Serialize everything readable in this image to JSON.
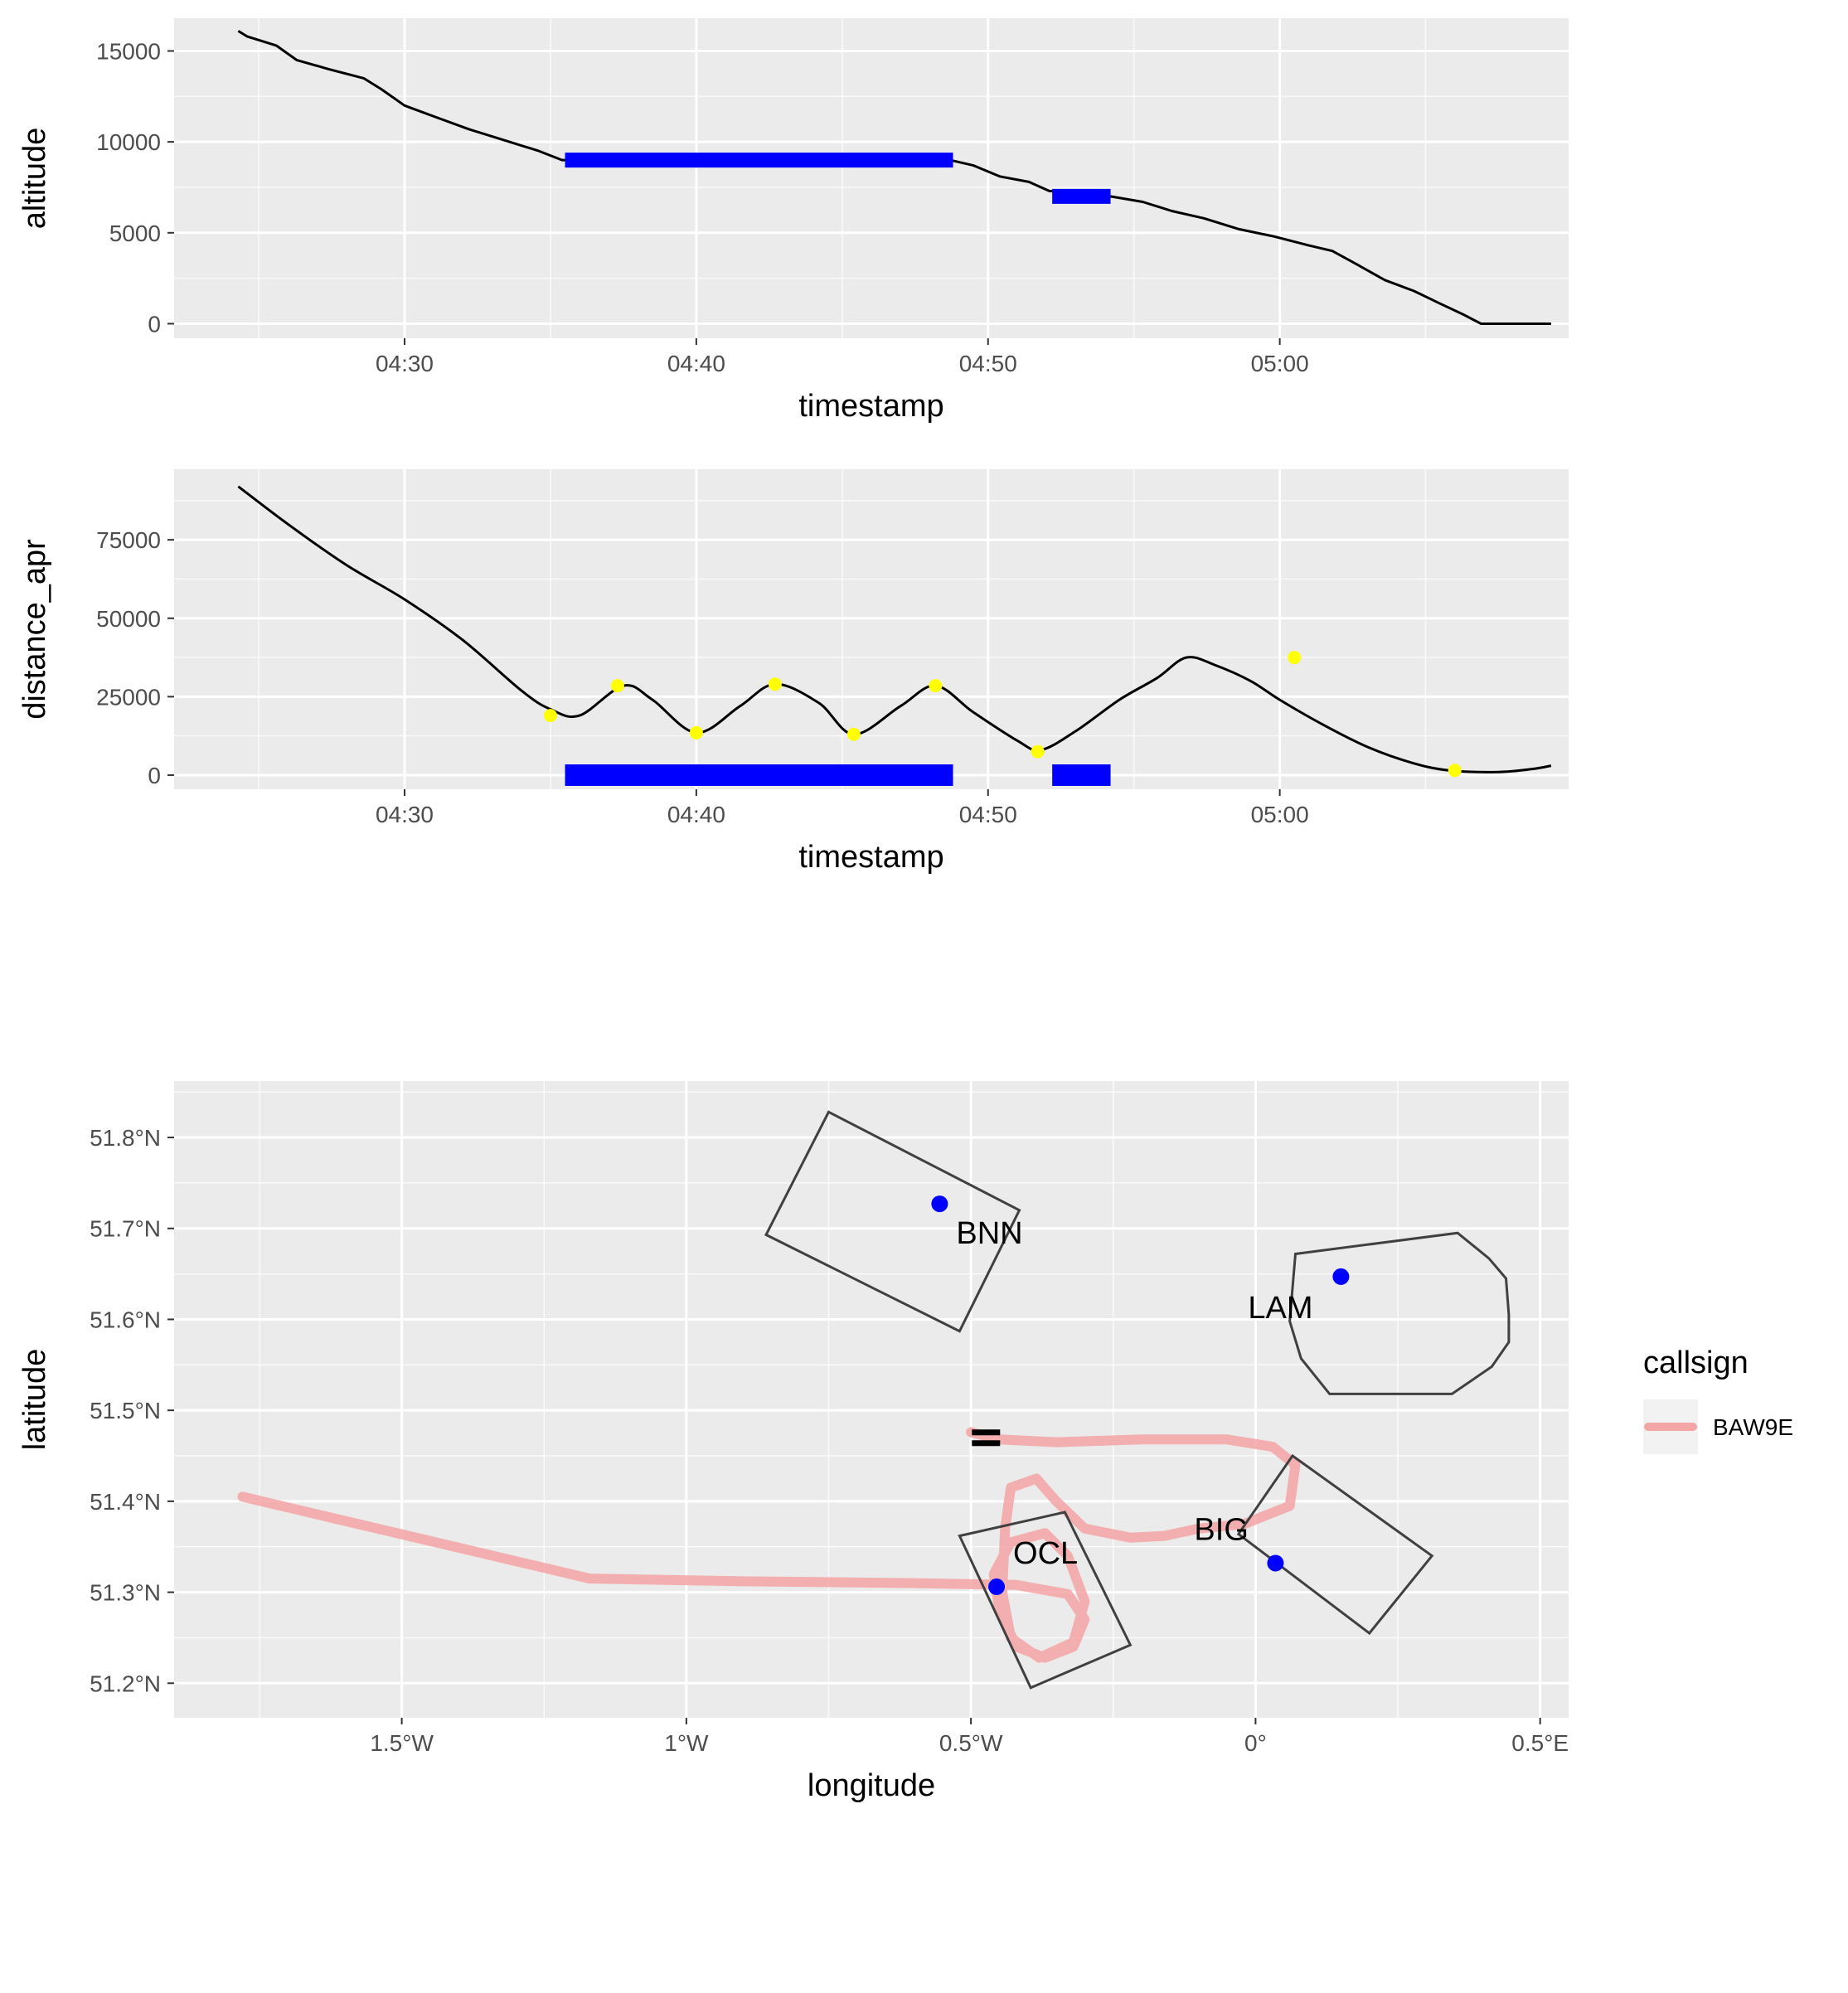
{
  "chart_data": [
    {
      "type": "line",
      "xlabel": "timestamp",
      "ylabel": "altitude",
      "x_ticks": [
        "04:30",
        "04:40",
        "04:50",
        "05:00"
      ],
      "x_tick_minutes": [
        30,
        40,
        50,
        60
      ],
      "y_ticks": [
        "0",
        "5000",
        "10000",
        "15000"
      ],
      "y_tick_values": [
        0,
        5000,
        10000,
        15000
      ],
      "xlim_minutes": [
        22.1,
        69.9
      ],
      "ylim": [
        -800,
        16800
      ],
      "series": [
        {
          "color": "#000000",
          "points": [
            [
              24.3,
              16100
            ],
            [
              24.6,
              15800
            ],
            [
              25.0,
              15600
            ],
            [
              25.6,
              15300
            ],
            [
              26.3,
              14500
            ],
            [
              27.4,
              14000
            ],
            [
              28.6,
              13500
            ],
            [
              29.2,
              12900
            ],
            [
              30.0,
              12000
            ],
            [
              31.0,
              11400
            ],
            [
              32.2,
              10700
            ],
            [
              33.4,
              10100
            ],
            [
              34.6,
              9500
            ],
            [
              35.4,
              9000
            ],
            [
              37.0,
              9000
            ],
            [
              40.0,
              9000
            ],
            [
              45.0,
              9000
            ],
            [
              48.7,
              9000
            ],
            [
              49.5,
              8700
            ],
            [
              50.4,
              8100
            ],
            [
              51.4,
              7800
            ],
            [
              52.1,
              7300
            ],
            [
              53.5,
              7200
            ],
            [
              54.2,
              7000
            ],
            [
              55.3,
              6700
            ],
            [
              56.3,
              6200
            ],
            [
              57.4,
              5800
            ],
            [
              58.6,
              5200
            ],
            [
              59.8,
              4800
            ],
            [
              61.0,
              4300
            ],
            [
              61.8,
              4000
            ],
            [
              62.6,
              3300
            ],
            [
              63.6,
              2400
            ],
            [
              64.6,
              1800
            ],
            [
              65.5,
              1100
            ],
            [
              66.3,
              500
            ],
            [
              66.9,
              0
            ],
            [
              67.5,
              0
            ],
            [
              68.7,
              0
            ],
            [
              69.3,
              0
            ]
          ]
        }
      ],
      "holds": [
        {
          "start_minutes": 35.5,
          "end_minutes": 48.8,
          "altitude": 9000
        },
        {
          "start_minutes": 52.2,
          "end_minutes": 54.2,
          "altitude": 7000
        }
      ]
    },
    {
      "type": "line",
      "xlabel": "timestamp",
      "ylabel": "distance_apr",
      "x_ticks": [
        "04:30",
        "04:40",
        "04:50",
        "05:00"
      ],
      "x_tick_minutes": [
        30,
        40,
        50,
        60
      ],
      "y_ticks": [
        "0",
        "25000",
        "50000",
        "75000"
      ],
      "y_tick_values": [
        0,
        25000,
        50000,
        75000
      ],
      "xlim_minutes": [
        22.1,
        69.9
      ],
      "ylim": [
        -4500,
        97500
      ],
      "series": [
        {
          "color": "#000000",
          "points": [
            [
              24.3,
              92000
            ],
            [
              26.0,
              80000
            ],
            [
              28.0,
              67000
            ],
            [
              30.0,
              56000
            ],
            [
              32.0,
              43000
            ],
            [
              34.0,
              27000
            ],
            [
              35.0,
              21000
            ],
            [
              36.0,
              19000
            ],
            [
              37.5,
              28500
            ],
            [
              38.5,
              24000
            ],
            [
              40.0,
              13500
            ],
            [
              41.5,
              22000
            ],
            [
              42.7,
              29000
            ],
            [
              44.2,
              23000
            ],
            [
              45.4,
              13000
            ],
            [
              47.0,
              22000
            ],
            [
              48.2,
              28500
            ],
            [
              49.5,
              20000
            ],
            [
              51.0,
              11000
            ],
            [
              51.8,
              8000
            ],
            [
              53.0,
              14000
            ],
            [
              54.5,
              24000
            ],
            [
              55.8,
              31000
            ],
            [
              56.8,
              37500
            ],
            [
              57.8,
              35000
            ],
            [
              59.0,
              30000
            ],
            [
              60.0,
              24000
            ],
            [
              61.5,
              16000
            ],
            [
              63.0,
              9000
            ],
            [
              64.5,
              4000
            ],
            [
              65.8,
              1500
            ],
            [
              67.5,
              1000
            ],
            [
              68.7,
              2000
            ],
            [
              69.3,
              3000
            ]
          ]
        }
      ],
      "yellow_points": [
        [
          35.0,
          19000
        ],
        [
          37.3,
          28500
        ],
        [
          40.0,
          13500
        ],
        [
          42.7,
          29000
        ],
        [
          45.4,
          13000
        ],
        [
          48.2,
          28500
        ],
        [
          51.7,
          7500
        ],
        [
          60.5,
          37500
        ],
        [
          66.0,
          1500
        ]
      ],
      "holds": [
        {
          "start_minutes": 35.5,
          "end_minutes": 48.8,
          "value": 0
        },
        {
          "start_minutes": 52.2,
          "end_minutes": 54.2,
          "value": 0
        }
      ]
    },
    {
      "type": "line",
      "xlabel": "longitude",
      "ylabel": "latitude",
      "x_ticks": [
        "1.5°W",
        "1°W",
        "0.5°W",
        "0°",
        "0.5°E"
      ],
      "x_tick_values": [
        -1.5,
        -1.0,
        -0.5,
        0.0,
        0.5
      ],
      "y_ticks": [
        "51.2°N",
        "51.3°N",
        "51.4°N",
        "51.5°N",
        "51.6°N",
        "51.7°N",
        "51.8°N"
      ],
      "y_tick_values": [
        51.2,
        51.3,
        51.4,
        51.5,
        51.6,
        51.7,
        51.8
      ],
      "xlim": [
        -1.9,
        0.55
      ],
      "ylim": [
        51.162,
        51.862
      ],
      "legend": {
        "title": "callsign",
        "entries": [
          "BAW9E"
        ],
        "placement": "right"
      },
      "series": [
        {
          "name": "BAW9E",
          "color": "#f4a5a5",
          "points": [
            [
              -1.78,
              51.405
            ],
            [
              -1.17,
              51.315
            ],
            [
              -0.9,
              51.312
            ],
            [
              -0.6,
              51.31
            ],
            [
              -0.42,
              51.308
            ],
            [
              -0.33,
              51.298
            ],
            [
              -0.3,
              51.27
            ],
            [
              -0.32,
              51.24
            ],
            [
              -0.37,
              51.228
            ],
            [
              -0.42,
              51.24
            ],
            [
              -0.45,
              51.28
            ],
            [
              -0.46,
              51.32
            ],
            [
              -0.43,
              51.355
            ],
            [
              -0.37,
              51.365
            ],
            [
              -0.33,
              51.34
            ],
            [
              -0.3,
              51.29
            ],
            [
              -0.32,
              51.245
            ],
            [
              -0.38,
              51.228
            ],
            [
              -0.43,
              51.25
            ],
            [
              -0.445,
              51.3
            ],
            [
              -0.44,
              51.37
            ],
            [
              -0.43,
              51.415
            ],
            [
              -0.385,
              51.425
            ],
            [
              -0.35,
              51.4
            ],
            [
              -0.3,
              51.37
            ],
            [
              -0.22,
              51.36
            ],
            [
              -0.16,
              51.362
            ],
            [
              -0.1,
              51.37
            ],
            [
              -0.02,
              51.375
            ],
            [
              0.06,
              51.395
            ],
            [
              0.07,
              51.44
            ],
            [
              0.03,
              51.46
            ],
            [
              -0.05,
              51.468
            ],
            [
              -0.2,
              51.468
            ],
            [
              -0.35,
              51.465
            ],
            [
              -0.45,
              51.468
            ],
            [
              -0.5,
              51.476
            ]
          ]
        }
      ],
      "waypoints": [
        {
          "label": "BNN",
          "lon": -0.555,
          "lat": 51.727
        },
        {
          "label": "LAM",
          "lon": 0.15,
          "lat": 51.647
        },
        {
          "label": "BIG",
          "lon": 0.035,
          "lat": 51.332
        },
        {
          "label": "OCL",
          "lon": -0.455,
          "lat": 51.306
        }
      ],
      "holding_areas": [
        [
          [
            -0.75,
            51.828
          ],
          [
            -0.415,
            51.72
          ],
          [
            -0.52,
            51.587
          ],
          [
            -0.86,
            51.693
          ]
        ],
        [
          [
            0.07,
            51.672
          ],
          [
            0.355,
            51.695
          ],
          [
            0.41,
            51.667
          ],
          [
            0.44,
            51.645
          ],
          [
            0.445,
            51.605
          ],
          [
            0.445,
            51.575
          ],
          [
            0.415,
            51.548
          ],
          [
            0.345,
            51.518
          ],
          [
            0.13,
            51.518
          ],
          [
            0.08,
            51.557
          ],
          [
            0.06,
            51.598
          ]
        ],
        [
          [
            0.065,
            51.45
          ],
          [
            0.31,
            51.34
          ],
          [
            0.2,
            51.255
          ],
          [
            -0.03,
            51.364
          ]
        ],
        [
          [
            -0.52,
            51.362
          ],
          [
            -0.335,
            51.388
          ],
          [
            -0.22,
            51.242
          ],
          [
            -0.395,
            51.195
          ]
        ]
      ]
    }
  ]
}
